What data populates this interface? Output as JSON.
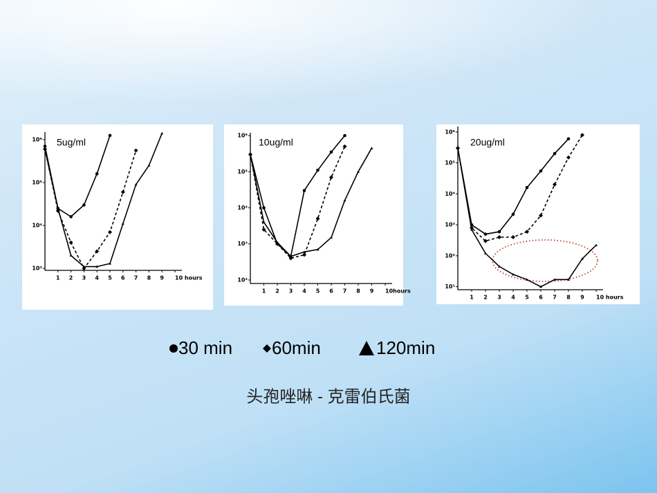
{
  "caption": "头孢唑啉 - 克雷伯氏菌",
  "chart_data": [
    {
      "type": "line",
      "title": "5ug/ml",
      "log_y": true,
      "xlim": [
        0,
        10
      ],
      "xticks": [
        1,
        2,
        3,
        4,
        5,
        6,
        7,
        8,
        9,
        {
          "value": 10,
          "label": "10 hours"
        }
      ],
      "ylim": [
        900,
        1500000
      ],
      "yticks": [
        {
          "value": 1000,
          "label": "10³"
        },
        {
          "value": 10000,
          "label": "10⁴"
        },
        {
          "value": 100000,
          "label": "10⁵"
        },
        {
          "value": 1000000,
          "label": "10⁶"
        }
      ],
      "series": [
        {
          "name": "30 min",
          "color": "#000000",
          "style": "solid",
          "marker": "circle",
          "x": [
            0,
            1,
            2,
            3,
            4,
            5
          ],
          "values": [
            700000,
            25000,
            16000,
            30000,
            160000,
            1250000
          ]
        },
        {
          "name": "60min",
          "color": "#000000",
          "style": "dashed",
          "marker": "diamond",
          "x": [
            0,
            1,
            2,
            3,
            4,
            5,
            6,
            7
          ],
          "values": [
            600000,
            22000,
            4000,
            1000,
            2500,
            7000,
            60000,
            560000
          ]
        },
        {
          "name": "120min",
          "color": "#000000",
          "style": "solid",
          "marker": "triangle",
          "x": [
            0,
            1,
            2,
            3,
            4,
            5,
            6,
            7,
            8,
            9
          ],
          "values": [
            600000,
            25000,
            2000,
            1100,
            1100,
            1300,
            11000,
            90000,
            250000,
            1400000
          ]
        }
      ]
    },
    {
      "type": "line",
      "title": "10ug/ml",
      "log_y": true,
      "xlim": [
        0,
        10
      ],
      "xticks": [
        1,
        2,
        3,
        4,
        5,
        6,
        7,
        8,
        9,
        {
          "value": 10,
          "label": "10hours"
        }
      ],
      "ylim": [
        80,
        1200000
      ],
      "yticks": [
        {
          "value": 100,
          "label": "10²"
        },
        {
          "value": 1000,
          "label": "10³"
        },
        {
          "value": 10000,
          "label": "10⁴"
        },
        {
          "value": 100000,
          "label": "10⁵"
        },
        {
          "value": 1000000,
          "label": "10⁶"
        }
      ],
      "series": [
        {
          "name": "30 min",
          "color": "#000000",
          "style": "solid",
          "marker": "circle",
          "x": [
            0,
            1,
            2,
            3,
            4,
            5,
            6,
            7
          ],
          "values": [
            300000,
            10000,
            1000,
            450,
            30000,
            110000,
            350000,
            1000000
          ]
        },
        {
          "name": "60min",
          "color": "#000000",
          "style": "dashed",
          "marker": "diamond",
          "x": [
            0,
            1,
            2,
            3,
            4,
            5,
            6,
            7
          ],
          "values": [
            300000,
            2500,
            1000,
            400,
            500,
            5000,
            70000,
            500000
          ]
        },
        {
          "name": "120min",
          "color": "#000000",
          "style": "solid",
          "marker": "triangle",
          "x": [
            0,
            1,
            2,
            3,
            4,
            5,
            6,
            7,
            8,
            9
          ],
          "values": [
            300000,
            4000,
            1100,
            450,
            600,
            700,
            1500,
            16000,
            100000,
            450000
          ]
        }
      ]
    },
    {
      "type": "line",
      "title": "20ug/ml",
      "log_y": true,
      "xlim": [
        0,
        10
      ],
      "xticks": [
        1,
        2,
        3,
        4,
        5,
        6,
        7,
        8,
        9,
        {
          "value": 10,
          "label": "10 hours"
        }
      ],
      "ylim": [
        8,
        1500000
      ],
      "yticks": [
        {
          "value": 10,
          "label": "10¹"
        },
        {
          "value": 100,
          "label": "10²"
        },
        {
          "value": 1000,
          "label": "10³"
        },
        {
          "value": 10000,
          "label": "10⁴"
        },
        {
          "value": 100000,
          "label": "10⁵"
        },
        {
          "value": 1000000,
          "label": "10⁶"
        }
      ],
      "series": [
        {
          "name": "30 min",
          "color": "#000000",
          "style": "solid",
          "marker": "circle",
          "x": [
            0,
            1,
            2,
            3,
            4,
            5,
            6,
            7,
            8
          ],
          "values": [
            300000,
            1000,
            500,
            600,
            2200,
            16000,
            55000,
            200000,
            600000
          ]
        },
        {
          "name": "60min",
          "color": "#000000",
          "style": "dashed",
          "marker": "diamond",
          "x": [
            0,
            1,
            2,
            3,
            4,
            5,
            6,
            7,
            8,
            9
          ],
          "values": [
            300000,
            800,
            300,
            400,
            400,
            600,
            2000,
            20000,
            150000,
            800000
          ]
        },
        {
          "name": "120min",
          "color": "#000000",
          "style": "solid",
          "marker": "triangle",
          "x": [
            0,
            1,
            2,
            3,
            4,
            5,
            6,
            7,
            8,
            9,
            10
          ],
          "values": [
            300000,
            700,
            120,
            45,
            25,
            17,
            10,
            17,
            17,
            80,
            220
          ]
        }
      ]
    }
  ]
}
